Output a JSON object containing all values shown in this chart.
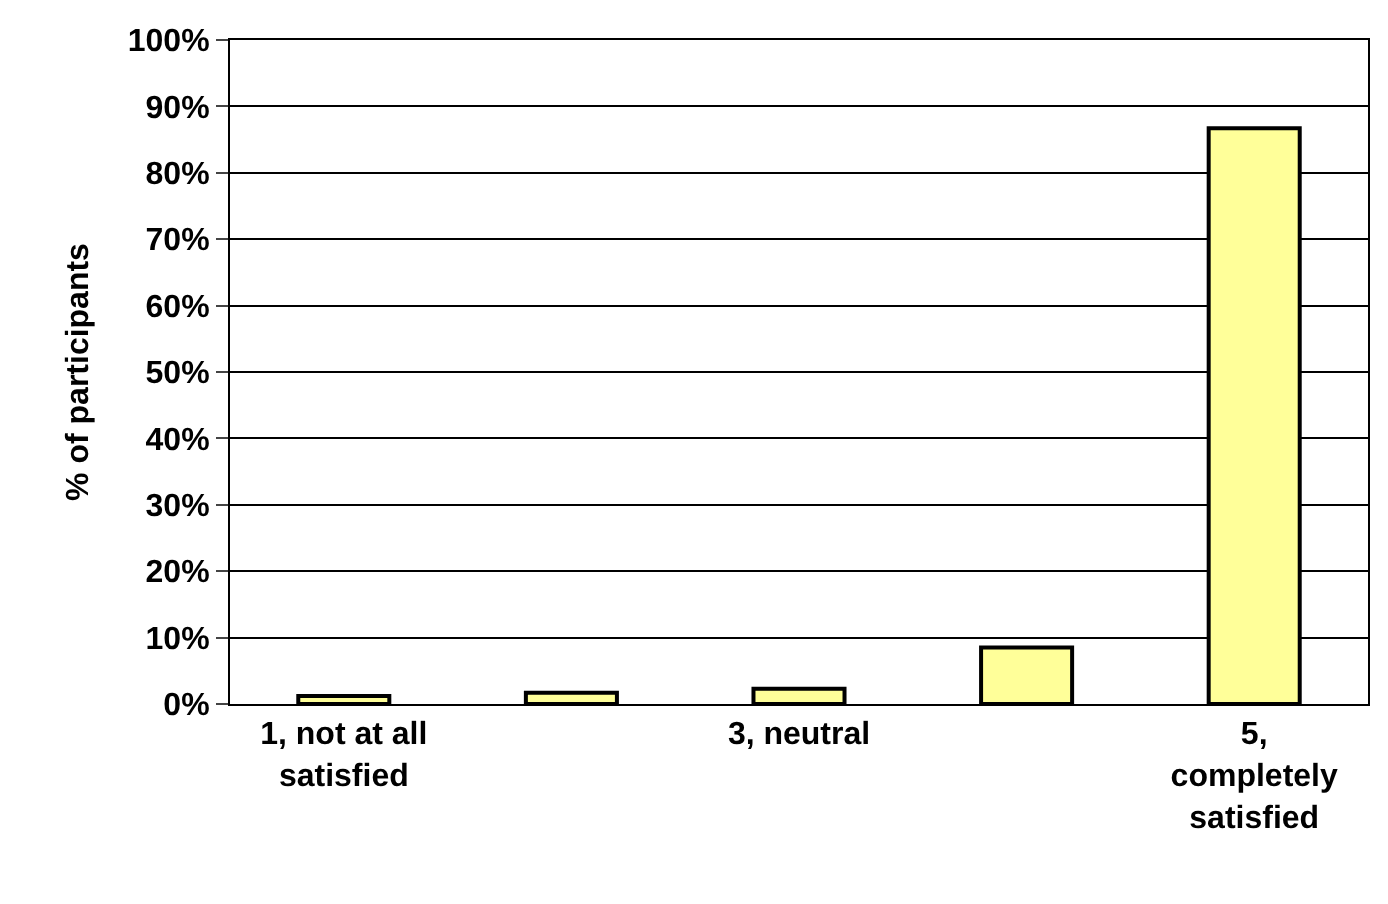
{
  "chart_data": {
    "type": "bar",
    "ylabel": "% of participants",
    "categories": [
      "1, not at all\nsatisfied",
      null,
      "3, neutral",
      null,
      "5,\ncompletely\nsatisfied"
    ],
    "values": [
      1.2,
      1.7,
      2.3,
      8.5,
      86.7
    ],
    "color": "#ffff99",
    "ylim": [
      0,
      100
    ],
    "yticks": [
      {
        "value": 0,
        "label": "0%"
      },
      {
        "value": 10,
        "label": "10%"
      },
      {
        "value": 20,
        "label": "20%"
      },
      {
        "value": 30,
        "label": "30%"
      },
      {
        "value": 40,
        "label": "40%"
      },
      {
        "value": 50,
        "label": "50%"
      },
      {
        "value": 60,
        "label": "60%"
      },
      {
        "value": 70,
        "label": "70%"
      },
      {
        "value": 80,
        "label": "80%"
      },
      {
        "value": 90,
        "label": "90%"
      },
      {
        "value": 100,
        "label": "100%"
      }
    ],
    "grid": "y",
    "legend": false
  }
}
